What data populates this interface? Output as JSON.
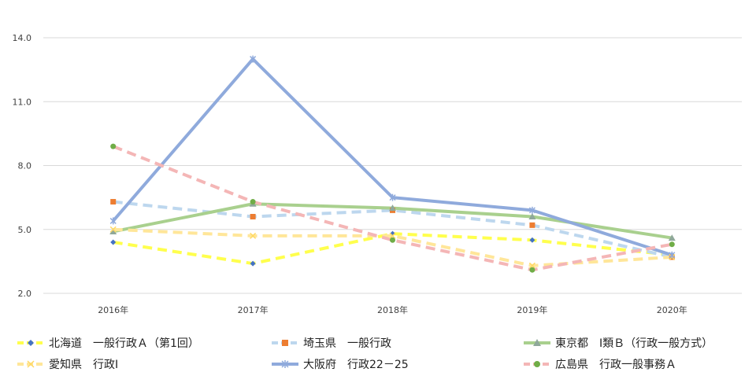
{
  "chart_data": {
    "type": "line",
    "categories": [
      "2016年",
      "2017年",
      "2018年",
      "2019年",
      "2020年"
    ],
    "y_ticks": [
      "2.0",
      "5.0",
      "8.0",
      "11.0",
      "14.0"
    ],
    "ylim": [
      2.0,
      14.0
    ],
    "grid": "horizontal",
    "legend_position": "bottom",
    "series": [
      {
        "name": "北海道　一般行政Ａ（第1回）",
        "values": [
          4.4,
          3.4,
          4.8,
          4.5,
          3.8
        ],
        "color": "#ffff4d",
        "dashed": true,
        "marker": "diamond",
        "marker_color": "#4472c4"
      },
      {
        "name": "埼玉県　一般行政",
        "values": [
          6.3,
          5.6,
          5.9,
          5.2,
          3.7
        ],
        "color": "#bdd7ee",
        "dashed": true,
        "marker": "square",
        "marker_color": "#ed7d31"
      },
      {
        "name": "東京都　Ⅰ類Ｂ（行政一般方式）",
        "values": [
          4.9,
          6.2,
          6.0,
          5.6,
          4.6
        ],
        "color": "#a9d08e",
        "dashed": false,
        "marker": "triangle",
        "marker_color": "#8fa89a"
      },
      {
        "name": "愛知県　行政Ⅰ",
        "values": [
          5.0,
          4.7,
          4.7,
          3.3,
          3.7
        ],
        "color": "#ffe699",
        "dashed": true,
        "marker": "x",
        "marker_color": "#ffd966"
      },
      {
        "name": "大阪府　行政22－25",
        "values": [
          5.4,
          13.0,
          6.5,
          5.9,
          3.8
        ],
        "color": "#8faadc",
        "dashed": false,
        "marker": "star",
        "marker_color": "#8faadc"
      },
      {
        "name": "広島県　行政一般事務Ａ",
        "values": [
          8.9,
          6.3,
          4.5,
          3.1,
          4.3
        ],
        "color": "#f4b6b6",
        "dashed": true,
        "marker": "circle",
        "marker_color": "#70ad47"
      }
    ]
  }
}
